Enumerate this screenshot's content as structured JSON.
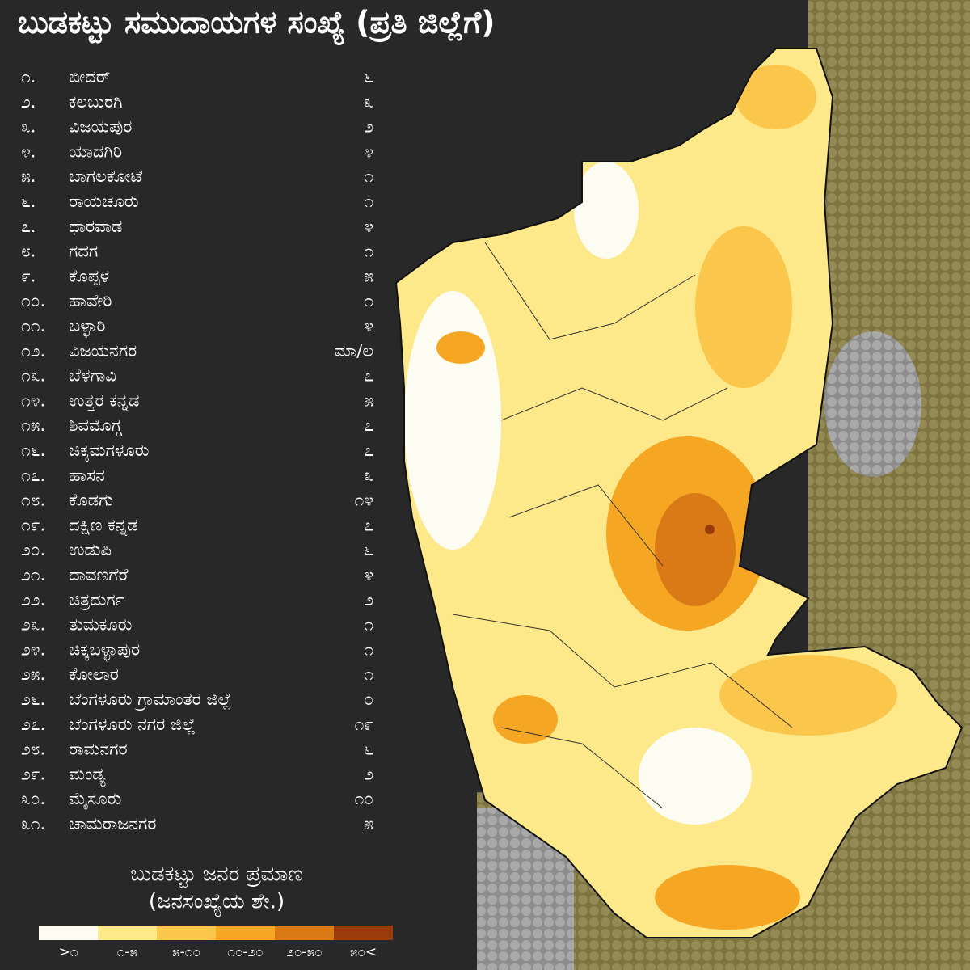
{
  "title": "ಬುಡಕಟ್ಟು ಸಮುದಾಯಗಳ ಸಂಖ್ಯೆ (ಪ್ರತಿ ಜಿಲ್ಲೆಗೆ)",
  "districts": [
    {
      "number": "೧.",
      "name": "ಬೀದರ್",
      "count": "೬"
    },
    {
      "number": "೨.",
      "name": "ಕಲಬುರಗಿ",
      "count": "೩"
    },
    {
      "number": "೩.",
      "name": "ವಿಜಯಪುರ",
      "count": "೨"
    },
    {
      "number": "೪.",
      "name": "ಯಾದಗಿರಿ",
      "count": "೪"
    },
    {
      "number": "೫.",
      "name": "ಬಾಗಲಕೋಟೆ",
      "count": "೧"
    },
    {
      "number": "೬.",
      "name": "ರಾಯಚೂರು",
      "count": "೧"
    },
    {
      "number": "೭.",
      "name": "ಧಾರವಾಡ",
      "count": "೪"
    },
    {
      "number": "೮.",
      "name": "ಗದಗ",
      "count": "೧"
    },
    {
      "number": "೯.",
      "name": "ಕೊಪ್ಪಳ",
      "count": "೫"
    },
    {
      "number": "೧೦.",
      "name": "ಹಾವೇರಿ",
      "count": "೧"
    },
    {
      "number": "೧೧.",
      "name": "ಬಳ್ಳಾರಿ",
      "count": "೪"
    },
    {
      "number": "೧೨.",
      "name": "ವಿಜಯನಗರ",
      "count": "ಮಾ/ಲ"
    },
    {
      "number": "೧೩.",
      "name": "ಬೆಳಗಾವಿ",
      "count": "೭"
    },
    {
      "number": "೧೪.",
      "name": "ಉತ್ತರ ಕನ್ನಡ",
      "count": "೫"
    },
    {
      "number": "೧೫.",
      "name": "ಶಿವಮೊಗ್ಗ",
      "count": "೭"
    },
    {
      "number": "೧೬.",
      "name": "ಚಿಕ್ಕಮಗಳೂರು",
      "count": "೭"
    },
    {
      "number": "೧೭.",
      "name": "ಹಾಸನ",
      "count": "೩"
    },
    {
      "number": "೧೮.",
      "name": "ಕೊಡಗು",
      "count": "೧೪"
    },
    {
      "number": "೧೯.",
      "name": "ದಕ್ಷಿಣ ಕನ್ನಡ",
      "count": "೭"
    },
    {
      "number": "೨೦.",
      "name": "ಉಡುಪಿ",
      "count": "೬"
    },
    {
      "number": "೨೧.",
      "name": "ದಾವಣಗೆರೆ",
      "count": "೪"
    },
    {
      "number": "೨೨.",
      "name": "ಚಿತ್ರದುರ್ಗ",
      "count": "೨"
    },
    {
      "number": "೨೩.",
      "name": "ತುಮಕೂರು",
      "count": "೧"
    },
    {
      "number": "೨೪.",
      "name": "ಚಿಕ್ಕಬಳ್ಳಾಪುರ",
      "count": "೧"
    },
    {
      "number": "೨೫.",
      "name": "ಕೋಲಾರ",
      "count": "೧"
    },
    {
      "number": "೨೬.",
      "name": "ಬೆಂಗಳೂರು ಗ್ರಾಮಾಂತರ ಜಿಲ್ಲೆ",
      "count": "೦"
    },
    {
      "number": "೨೭.",
      "name": "ಬೆಂಗಳೂರು ನಗರ ಜಿಲ್ಲೆ",
      "count": "೧೯"
    },
    {
      "number": "೨೮.",
      "name": "ರಾಮನಗರ",
      "count": "೬"
    },
    {
      "number": "೨೯.",
      "name": "ಮಂಡ್ಯ",
      "count": "೨"
    },
    {
      "number": "೩೦.",
      "name": "ಮೈಸೂರು",
      "count": "೧೦"
    },
    {
      "number": "೩೧.",
      "name": "ಚಾಮರಾಜನಗರ",
      "count": "೫"
    }
  ],
  "legend": {
    "title": [
      "ಬುಡಕಟ್ಟು ಜನರ ಪ್ರಮಾಣ",
      "(ಜನಸಂಖ್ಯೆಯ ಶೇ.)"
    ],
    "items": [
      {
        "label": ">೧",
        "color": "#fdfcf2"
      },
      {
        "label": "೧-೫",
        "color": "#fde98a"
      },
      {
        "label": "೫-೧೦",
        "color": "#fbc64c"
      },
      {
        "label": "೧೦-೨೦",
        "color": "#f5a623"
      },
      {
        "label": "೨೦-೫೦",
        "color": "#d97a16"
      },
      {
        "label": "೫೦<",
        "color": "#9a3b0a"
      }
    ]
  }
}
